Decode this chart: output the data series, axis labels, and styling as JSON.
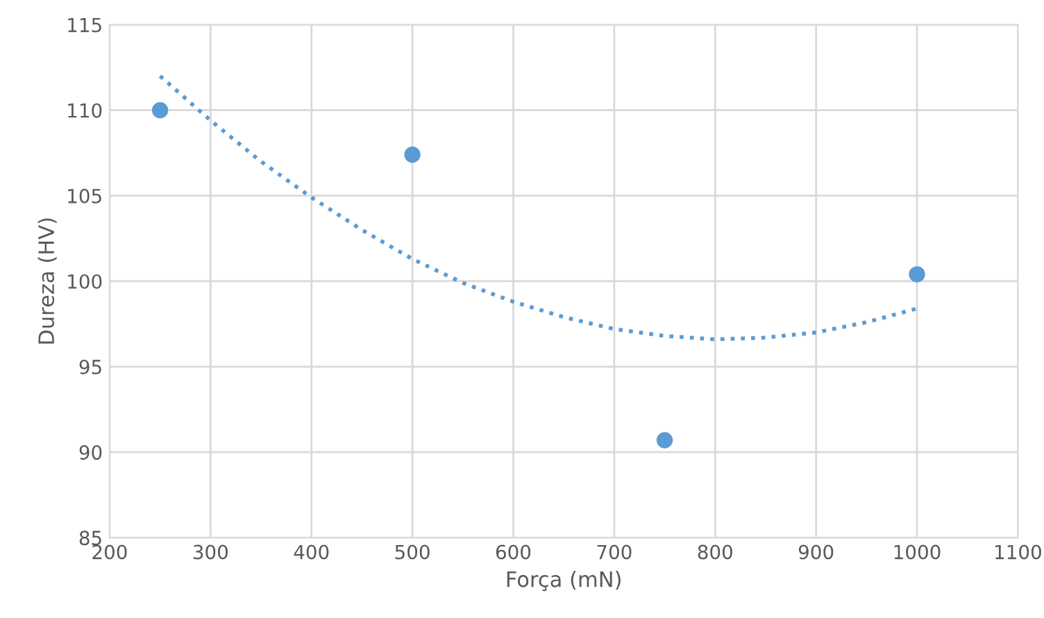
{
  "chart_data": {
    "type": "scatter",
    "xlabel": "Força (mN)",
    "ylabel": "Dureza (HV)",
    "xlim": [
      200,
      1100
    ],
    "xticks": [
      200,
      300,
      400,
      500,
      600,
      700,
      800,
      900,
      1000,
      1100
    ],
    "ylim": [
      85,
      115
    ],
    "yticks": [
      85,
      90,
      95,
      100,
      105,
      110,
      115
    ],
    "grid": true,
    "legend": false,
    "series": [
      {
        "color": "#5b9bd5",
        "marker": "circle",
        "x": [
          250,
          500,
          750,
          1000
        ],
        "values": [
          110.0,
          107.4,
          90.7,
          100.4
        ]
      },
      {
        "type": "line",
        "color": "#5b9bd5",
        "line_style": "dotted",
        "marker": "none",
        "x": [
          250,
          300,
          350,
          400,
          450,
          500,
          550,
          600,
          650,
          700,
          750,
          800,
          850,
          900,
          950,
          1000
        ],
        "values": [
          112.0,
          109.4,
          107.0,
          104.9,
          103.0,
          101.3,
          99.9,
          98.8,
          97.9,
          97.2,
          96.8,
          96.6,
          96.7,
          97.0,
          97.6,
          98.4
        ]
      }
    ]
  }
}
